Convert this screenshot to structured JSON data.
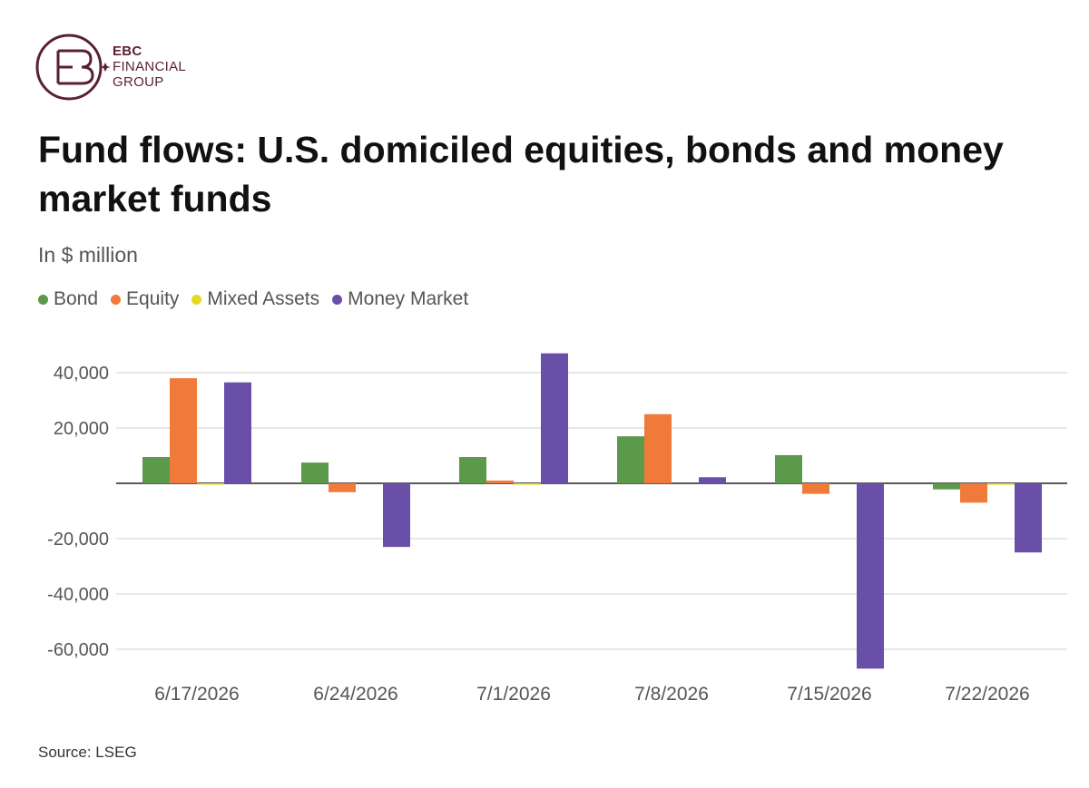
{
  "brand": {
    "line1": "EBC",
    "line2": "FINANCIAL",
    "line3": "GROUP",
    "color": "#5a1f33"
  },
  "title": "Fund flows: U.S. domiciled equities, bonds and money market funds",
  "subtitle": "In $ million",
  "source": "Source: LSEG",
  "chart_data": {
    "type": "bar",
    "title": "Fund flows: U.S. domiciled equities, bonds and money market funds",
    "subtitle": "In $ million",
    "categories": [
      "6/17/2026",
      "6/24/2026",
      "7/1/2026",
      "7/8/2026",
      "7/15/2026",
      "7/22/2026"
    ],
    "series": [
      {
        "name": "Bond",
        "color": "#5a9a4a",
        "values": [
          9500,
          7500,
          9500,
          17000,
          10200,
          -2200
        ]
      },
      {
        "name": "Equity",
        "color": "#f07a3a",
        "values": [
          38000,
          -3200,
          1000,
          25000,
          -3800,
          -7000
        ]
      },
      {
        "name": "Mixed Assets",
        "color": "#e5d820",
        "values": [
          -500,
          0,
          -400,
          0,
          0,
          -500
        ]
      },
      {
        "name": "Money Market",
        "color": "#6a4fa8",
        "values": [
          36500,
          -23000,
          47000,
          2200,
          -67000,
          -25000
        ]
      }
    ],
    "yticks": [
      "40,000",
      "20,000",
      "",
      "-20,000",
      "-40,000",
      "-60,000"
    ],
    "ytick_values": [
      40000,
      20000,
      0,
      -20000,
      -40000,
      -60000
    ],
    "ylim": [
      -67000,
      47000
    ],
    "grid": true,
    "legend_position": "top-left"
  }
}
